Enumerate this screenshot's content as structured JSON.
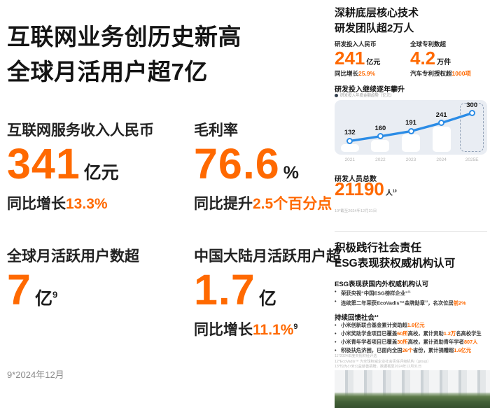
{
  "colors": {
    "accent": "#ff6900",
    "line_blue": "#2b8ce6",
    "chart_bg": "#e9edf3"
  },
  "left": {
    "title_line1": "互联网业务创历史新高",
    "title_line2": "全球月活用户超7亿",
    "metrics": {
      "revenue": {
        "label": "互联网服务收入人民币",
        "value": "341",
        "unit": "亿元",
        "sub_prefix": "同比增长",
        "sub_highlight": "13.3%"
      },
      "margin": {
        "label": "毛利率",
        "value": "76.6",
        "unit": "%",
        "sub_prefix": "同比提升",
        "sub_highlight": "2.5个百分点"
      },
      "global_mau": {
        "label": "全球月活跃用户数超",
        "value": "7",
        "unit": "亿",
        "sup": "9"
      },
      "china_mau": {
        "label": "中国大陆月活跃用户超",
        "value": "1.7",
        "unit": "亿",
        "sub_prefix": "同比增长",
        "sub_highlight": "11.1%",
        "sub_sup": "9"
      }
    },
    "footnote": "9*2024年12月"
  },
  "right": {
    "rd": {
      "title_line1": "深耕底层核心技术",
      "title_line2": "研发团队超2万人",
      "stat_invest": {
        "label": "研发投入人民币",
        "value": "241",
        "unit": "亿元",
        "sub_prefix": "同比增长",
        "sub_highlight": "25.9%"
      },
      "stat_patent": {
        "label": "全球专利数超",
        "value": "4.2",
        "unit": "万件",
        "sub_prefix": "汽车专利授权超",
        "sub_highlight": "1000项"
      },
      "chart_header": "研发投入继续逐年攀升",
      "chart_legend": "研发投入年度金额趋势（亿元）",
      "personnel_label": "研发人员总数",
      "personnel_value": "21190",
      "personnel_unit": "人",
      "personnel_sup": "10",
      "personnel_footnote": "10*截至2024年12月31日"
    },
    "esg": {
      "title_line1": "积极践行社会责任",
      "title_line2": "ESG表现获权威机构认可",
      "section1_title": "ESG表现获国内外权威机构认可",
      "section1_bullets": [
        [
          {
            "t": "荣获央视“中国ESG榜样企业”"
          },
          {
            "t": "11",
            "sup": true
          }
        ],
        [
          {
            "t": "连续第二年荣获EcoVadis™金牌勋章"
          },
          {
            "t": "12",
            "sup": true
          },
          {
            "t": "，名次位居"
          },
          {
            "t": "前2%",
            "hl": true
          }
        ]
      ],
      "section2_title": "持续回馈社会",
      "section2_sup": "13",
      "section2_bullets": [
        [
          {
            "t": "小米创新联合基金累计资助超"
          },
          {
            "t": "1.6亿元",
            "hl": true
          }
        ],
        [
          {
            "t": "小米奖助学金项目已覆盖"
          },
          {
            "t": "60所",
            "hl": true
          },
          {
            "t": "高校，累计资助"
          },
          {
            "t": "1.2万",
            "hl": true
          },
          {
            "t": "名高校学生"
          }
        ],
        [
          {
            "t": "小米青年学者项目已覆盖"
          },
          {
            "t": "30所",
            "hl": true
          },
          {
            "t": "高校，累计资助青年学者"
          },
          {
            "t": "807人",
            "hl": true
          }
        ],
        [
          {
            "t": "积极扶危济困，已面向全国"
          },
          {
            "t": "26个",
            "hl": true
          },
          {
            "t": "省份，累计捐赠超"
          },
          {
            "t": "1.6亿元",
            "hl": true
          }
        ]
      ],
      "footnotes": [
        "11*2024年度央视财经评选",
        "12*EcoVadis™ 为全球权威企业社会责任评级机构（group）",
        "13*均为小米公益慈善捐赠，数据截至2024年12月31日"
      ]
    }
  },
  "chart_data": {
    "type": "line",
    "title": "研发投入继续逐年攀升",
    "legend": "研发投入年度金额趋势（亿元）",
    "categories": [
      "2021",
      "2022",
      "2023",
      "2024",
      "2025E"
    ],
    "values": [
      132,
      160,
      191,
      241,
      300
    ],
    "unit": "亿元",
    "ylim": [
      100,
      320
    ],
    "grid": false,
    "highlight_last_dashed": true,
    "line_color": "#2b8ce6"
  }
}
